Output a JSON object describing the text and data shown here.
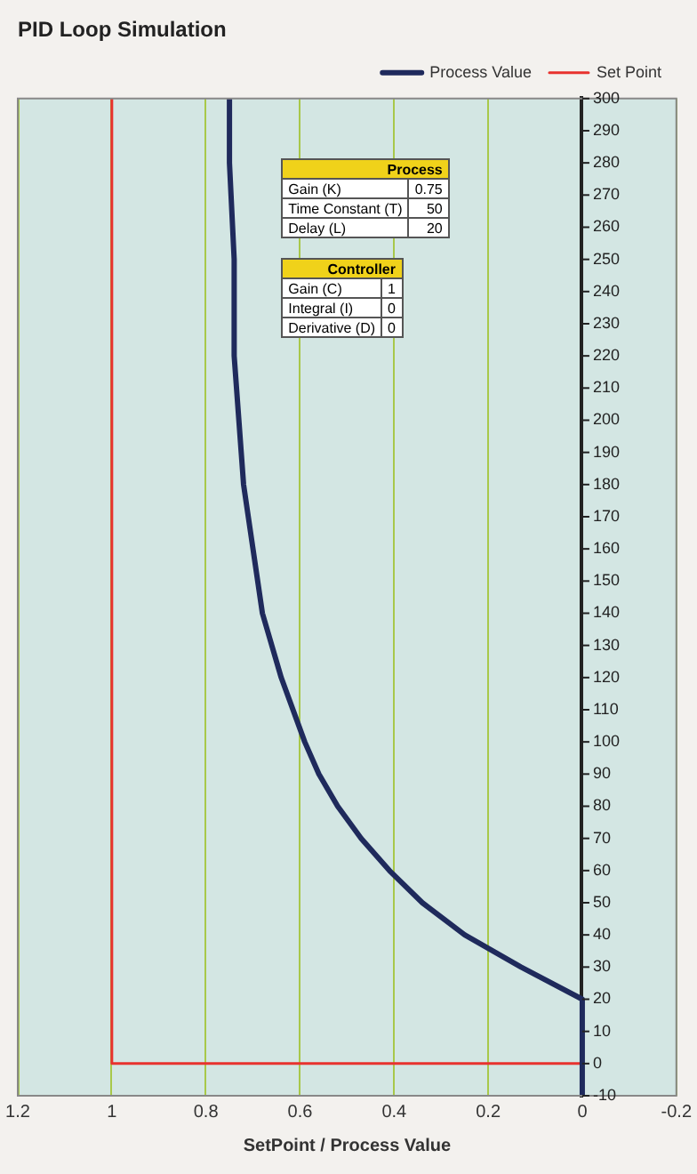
{
  "chart_data": {
    "type": "line",
    "title": "PID Loop Simulation",
    "xlabel": "SetPoint / Process Value",
    "xlim": [
      1.2,
      -0.2
    ],
    "xticks": [
      1.2,
      1,
      0.8,
      0.6,
      0.4,
      0.2,
      0,
      -0.2
    ],
    "ylim": [
      -10,
      300
    ],
    "yticks": [
      -10,
      0,
      10,
      20,
      30,
      40,
      50,
      60,
      70,
      80,
      90,
      100,
      110,
      120,
      130,
      140,
      150,
      160,
      170,
      180,
      190,
      200,
      210,
      220,
      230,
      240,
      250,
      260,
      270,
      280,
      290,
      300
    ],
    "grid": "x",
    "legend": "top right",
    "marker": "none",
    "line_style": "solid",
    "series": [
      {
        "name": "Process Value",
        "color": "#1f2a5c",
        "x": [
          0,
          0,
          0.13,
          0.25,
          0.34,
          0.41,
          0.47,
          0.52,
          0.56,
          0.59,
          0.64,
          0.68,
          0.7,
          0.72,
          0.73,
          0.74,
          0.74,
          0.75,
          0.75
        ],
        "values": [
          -10,
          20,
          30,
          40,
          50,
          60,
          70,
          80,
          90,
          100,
          120,
          140,
          160,
          180,
          200,
          220,
          250,
          280,
          300
        ]
      },
      {
        "name": "Set Point",
        "color": "#e8322e",
        "x": [
          0,
          0,
          1,
          1
        ],
        "values": [
          -10,
          0,
          0,
          300
        ]
      }
    ],
    "annotations": [
      "Process",
      "Gain (K)",
      "0.75",
      "Time Constant (T)",
      "50",
      "Delay (L)",
      "20",
      "Controller",
      "Gain (C)",
      "1",
      "Integral (I)",
      "0",
      "Derivative (D)",
      "0"
    ]
  }
}
